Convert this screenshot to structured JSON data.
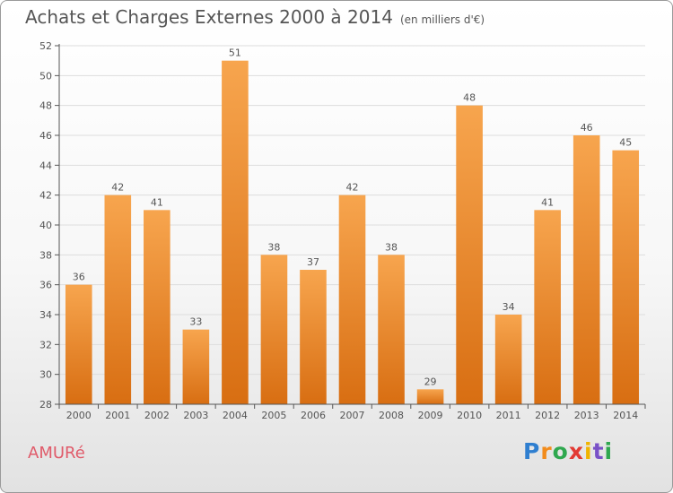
{
  "header": {
    "title": "Achats et Charges Externes 2000 à 2014",
    "unit": "(en milliers d'€)"
  },
  "footer": {
    "commune": "AMURé",
    "logo_letters": [
      "P",
      "r",
      "o",
      "x",
      "i",
      "t",
      "i"
    ],
    "logo_colors": [
      "#2f7fd0",
      "#f28c1c",
      "#2fa84f",
      "#e23a33",
      "#f0b400",
      "#7a52c7",
      "#2fa84f"
    ]
  },
  "colors": {
    "bar_top": "#f7a54e",
    "bar_bottom": "#d86e12",
    "grid": "#dddddd",
    "axis": "#555555",
    "text": "#555555"
  },
  "chart_data": {
    "type": "bar",
    "title": "Achats et Charges Externes 2000 à 2014",
    "categories": [
      "2000",
      "2001",
      "2002",
      "2003",
      "2004",
      "2005",
      "2006",
      "2007",
      "2008",
      "2009",
      "2010",
      "2011",
      "2012",
      "2013",
      "2014"
    ],
    "values": [
      36,
      42,
      41,
      33,
      51,
      38,
      37,
      42,
      38,
      29,
      48,
      34,
      41,
      46,
      45
    ],
    "ylim": [
      28,
      52
    ],
    "yticks": [
      28,
      30,
      32,
      34,
      36,
      38,
      40,
      42,
      44,
      46,
      48,
      50,
      52
    ],
    "grid": true,
    "data_labels": true
  }
}
